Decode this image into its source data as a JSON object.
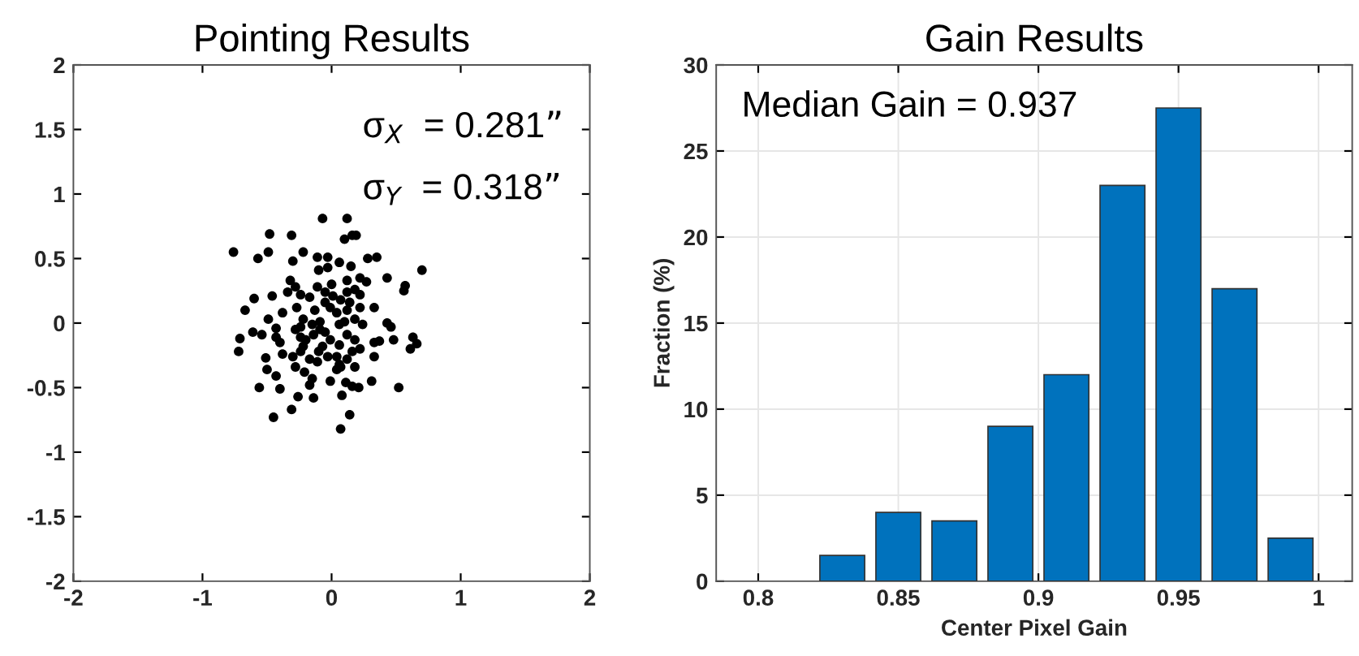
{
  "chart_data": [
    {
      "type": "scatter",
      "title": "Pointing Results",
      "marker": "circle",
      "grid": false,
      "xlim": [
        -2,
        2
      ],
      "ylim": [
        -2,
        2
      ],
      "xticks": [
        -2,
        -1,
        0,
        1,
        2
      ],
      "yticks": [
        -2,
        -1.5,
        -1,
        -0.5,
        0,
        0.5,
        1,
        1.5,
        2
      ],
      "annotations": [
        "σ$_{X}$  = 0.281”",
        "σ$_{Y}$  = 0.318”"
      ],
      "series": [
        {
          "color": "#000000",
          "x": [
            -0.76,
            -0.07,
            0.12,
            -0.48,
            -0.31,
            0.1,
            0.16,
            0.19,
            -0.49,
            -0.57,
            -0.22,
            -0.11,
            -0.03,
            0.06,
            0.28,
            0.35,
            -0.3,
            -0.1,
            -0.03,
            0.15,
            0.43,
            0.7,
            0.57,
            0.56,
            0.22,
            0.27,
            -0.32,
            -0.28,
            -0.34,
            -0.46,
            -0.6,
            -0.67,
            -0.24,
            -0.17,
            -0.05,
            0.01,
            0.07,
            0.12,
            0.18,
            0.22,
            0.0,
            -0.11,
            0.33,
            -0.38,
            -0.27,
            -0.22,
            -0.13,
            -0.09,
            0.04,
            0.12,
            0.18,
            0.24,
            -0.49,
            -0.43,
            0.43,
            0.46,
            -0.61,
            -0.54,
            -0.71,
            -0.72,
            -0.43,
            -0.4,
            -0.28,
            -0.24,
            -0.2,
            -0.14,
            -0.05,
            -0.01,
            0.06,
            0.12,
            0.18,
            0.22,
            0.33,
            0.37,
            0.48,
            0.63,
            0.66,
            0.61,
            -0.38,
            -0.3,
            -0.24,
            -0.17,
            -0.1,
            -0.03,
            0.06,
            0.12,
            0.18,
            0.33,
            -0.51,
            -0.5,
            -0.43,
            -0.28,
            -0.21,
            -0.15,
            -0.17,
            0.04,
            0.07,
            -0.01,
            0.11,
            -0.56,
            -0.4,
            0.16,
            0.21,
            0.31,
            0.52,
            -0.26,
            -0.14,
            0.08,
            -0.31,
            -0.45,
            0.14,
            0.07,
            -0.05,
            -0.09,
            -0.15,
            -0.22,
            0.06,
            0.1,
            0.14,
            -0.01,
            -0.07,
            0.04,
            -0.11,
            0.16,
            0.22,
            -0.24,
            0.12
          ],
          "values": [
            0.55,
            0.81,
            0.81,
            0.69,
            0.68,
            0.65,
            0.68,
            0.68,
            0.55,
            0.5,
            0.55,
            0.51,
            0.51,
            0.47,
            0.5,
            0.51,
            0.48,
            0.41,
            0.43,
            0.44,
            0.35,
            0.41,
            0.29,
            0.25,
            0.35,
            0.32,
            0.33,
            0.28,
            0.24,
            0.21,
            0.19,
            0.1,
            0.22,
            0.2,
            0.24,
            0.21,
            0.18,
            0.33,
            0.26,
            0.22,
            0.3,
            0.28,
            0.12,
            0.08,
            0.12,
            0.03,
            0.1,
            0.01,
            0.08,
            0.1,
            0.03,
            -0.01,
            0.03,
            -0.04,
            0.0,
            -0.03,
            -0.07,
            -0.09,
            -0.12,
            -0.22,
            -0.11,
            -0.15,
            -0.05,
            -0.11,
            -0.13,
            -0.09,
            -0.07,
            -0.13,
            -0.17,
            -0.09,
            -0.13,
            -0.2,
            -0.15,
            -0.14,
            -0.13,
            -0.11,
            -0.16,
            -0.2,
            -0.24,
            -0.26,
            -0.22,
            -0.28,
            -0.22,
            -0.26,
            -0.32,
            -0.28,
            -0.34,
            -0.26,
            -0.27,
            -0.36,
            -0.41,
            -0.34,
            -0.38,
            -0.43,
            -0.48,
            -0.36,
            -0.34,
            -0.45,
            -0.46,
            -0.5,
            -0.51,
            -0.49,
            -0.5,
            -0.45,
            -0.5,
            -0.57,
            -0.58,
            -0.56,
            -0.67,
            -0.73,
            -0.71,
            -0.82,
            0.16,
            -0.05,
            -0.01,
            -0.18,
            -0.01,
            0.01,
            0.16,
            0.12,
            -0.18,
            -0.26,
            -0.3,
            -0.22,
            0.12,
            -0.03,
            0.24
          ]
        }
      ]
    },
    {
      "type": "histogram",
      "title": "Gain Results",
      "xlabel": "Center Pixel Gain",
      "ylabel": "Fraction (%)",
      "grid": true,
      "color": "#0072bd",
      "bins": [
        0.82,
        0.84,
        0.86,
        0.88,
        0.9,
        0.92,
        0.94,
        0.96,
        0.98,
        1.0
      ],
      "values": [
        1.5,
        4,
        3.5,
        9,
        12,
        23,
        27.5,
        17,
        2.5
      ],
      "xlim": [
        0.785,
        1.012
      ],
      "ylim": [
        0,
        30
      ],
      "xticks": [
        0.8,
        0.85,
        0.9,
        0.95,
        1
      ],
      "yticks": [
        0,
        5,
        10,
        15,
        20,
        25,
        30
      ],
      "annotations": [
        "Median Gain = 0.937"
      ]
    }
  ]
}
